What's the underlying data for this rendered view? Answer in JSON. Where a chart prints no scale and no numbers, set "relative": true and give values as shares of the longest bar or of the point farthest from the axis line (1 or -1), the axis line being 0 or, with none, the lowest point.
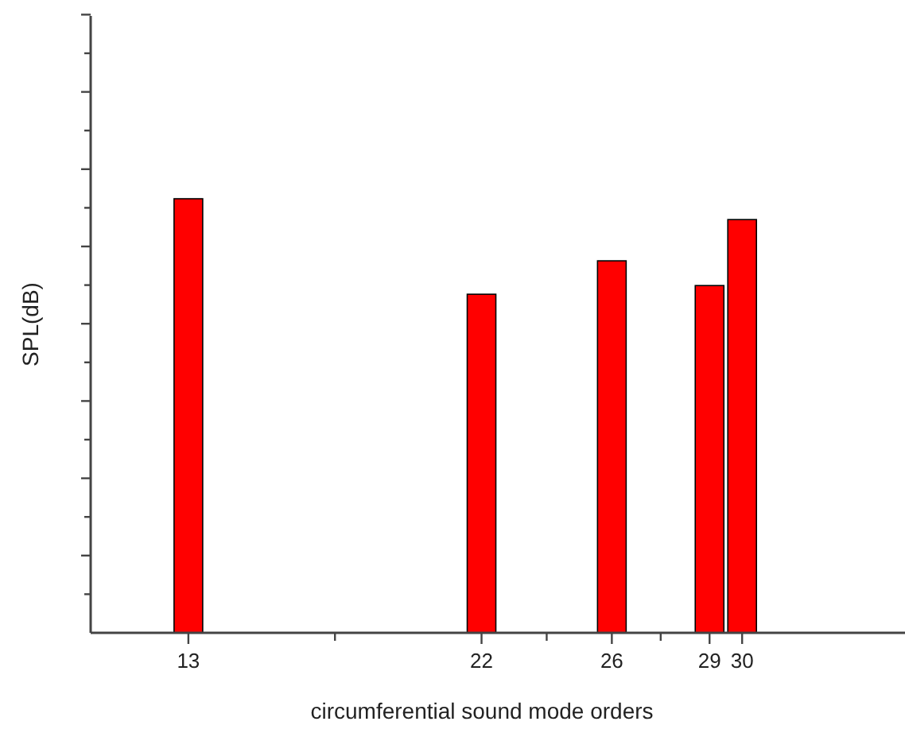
{
  "chart_data": {
    "type": "bar",
    "relative": true,
    "xlabel": "circumferential sound mode orders",
    "ylabel": "SPL(dB)",
    "x": [
      13,
      22,
      26,
      29,
      30
    ],
    "values": [
      1,
      0.78,
      0.857,
      0.8,
      0.952
    ],
    "color": "#ff0000",
    "xlim": [
      10,
      35
    ],
    "xticks": [
      13,
      {
        "value": 17.5,
        "label": null
      },
      22,
      {
        "value": 24,
        "label": null
      },
      26,
      {
        "value": 27.5,
        "label": null
      },
      29,
      30
    ],
    "grid": false
  }
}
